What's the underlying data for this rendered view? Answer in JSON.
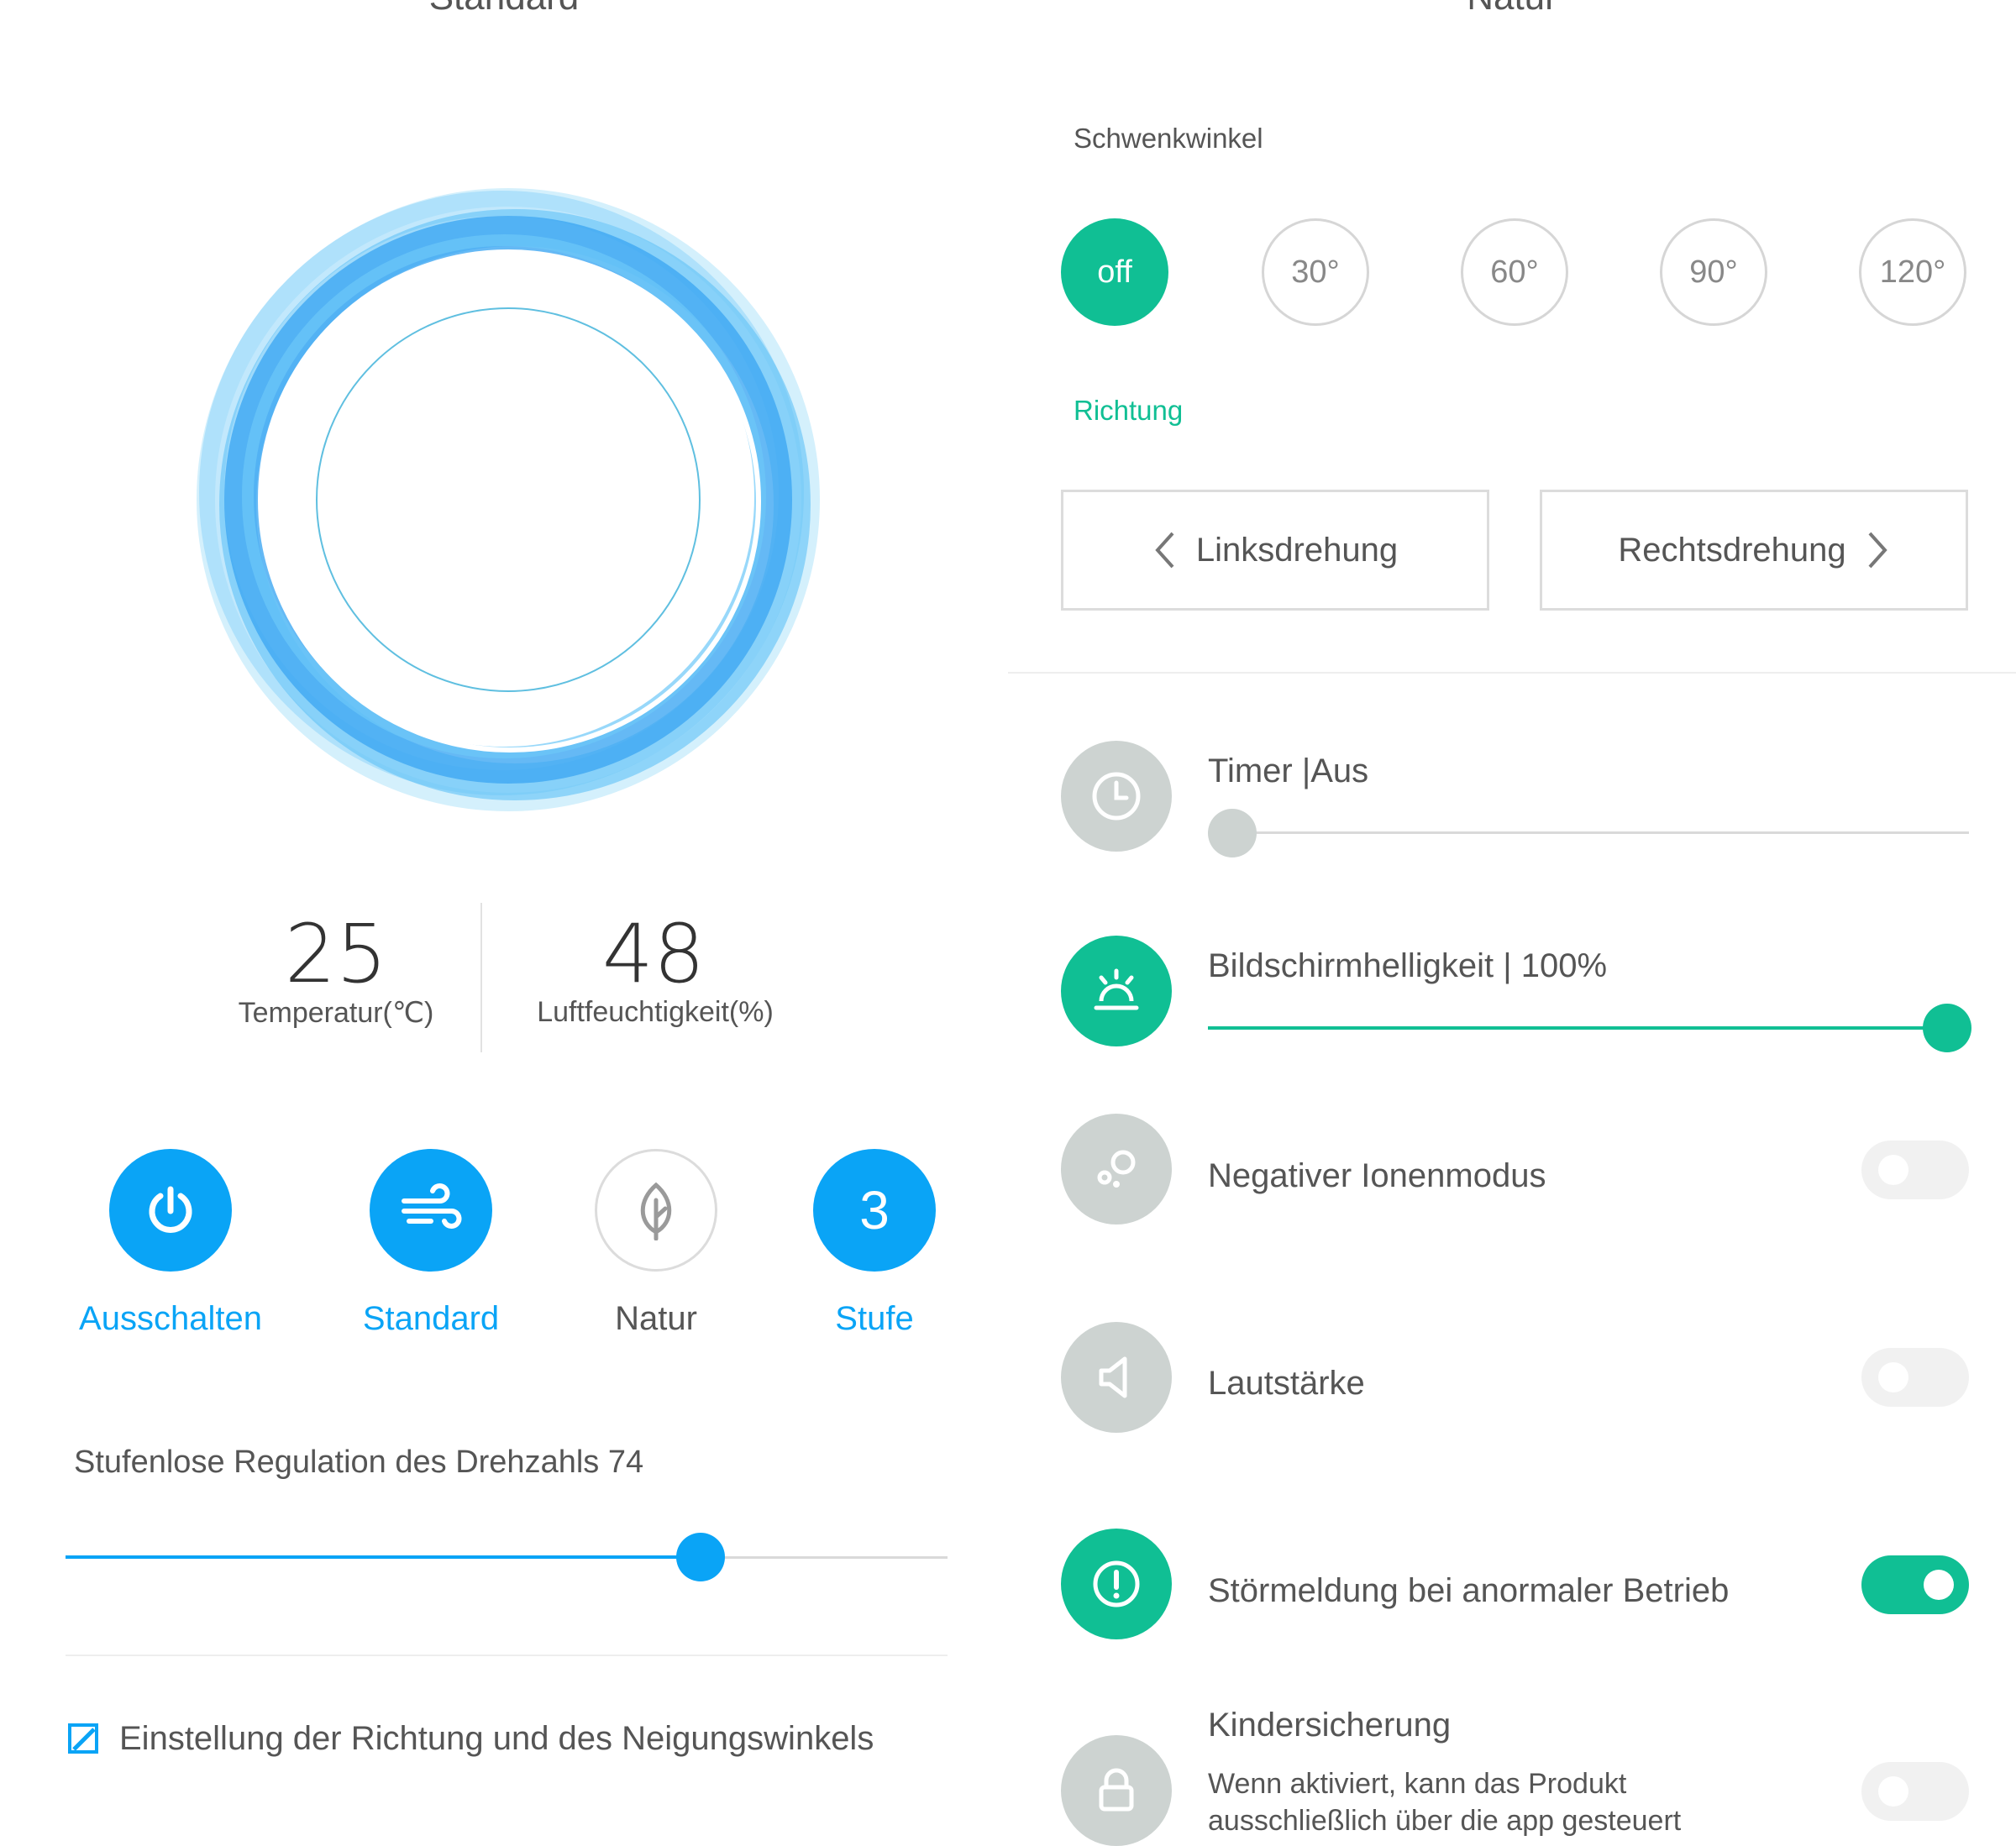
{
  "left_panel": {
    "top_title": "Standard",
    "temperature": {
      "value": "25",
      "label": "Temperatur(℃)"
    },
    "humidity": {
      "value": "48",
      "label": "Luftfeuchtigkeit(%)"
    },
    "modes": [
      {
        "label": "Ausschalten",
        "icon": "power-icon",
        "active": true
      },
      {
        "label": "Standard",
        "icon": "wind-icon",
        "active": true
      },
      {
        "label": "Natur",
        "icon": "leaf-icon",
        "active": false
      },
      {
        "label": "Stufe",
        "icon_text": "3",
        "active": true
      }
    ],
    "speed": {
      "label": "Stufenlose Regulation des Drehzahls 74",
      "level_fraction": 0.72
    },
    "direction_link": "Einstellung der Richtung und des Neigungswinkels",
    "accent": "#0aa4f6"
  },
  "right_panel": {
    "top_title": "Natur",
    "swing_label": "Schwenkwinkel",
    "angles": [
      {
        "label": "off",
        "active": true
      },
      {
        "label": "30°",
        "active": false
      },
      {
        "label": "60°",
        "active": false
      },
      {
        "label": "90°",
        "active": false
      },
      {
        "label": "120°",
        "active": false
      }
    ],
    "direction_label": "Richtung",
    "left_turn": "Linksdrehung",
    "right_turn": "Rechtsdrehung",
    "timer": {
      "label": "Timer |Aus",
      "level_fraction": 0
    },
    "brightness": {
      "label": "Bildschirmhelligkeit | 100%",
      "level_fraction": 1.0
    },
    "negative_ion": {
      "label": "Negativer Ionenmodus",
      "on": false
    },
    "volume": {
      "label": "Lautstärke",
      "on": false
    },
    "fault_alert": {
      "label": "Störmeldung bei anormaler Betrieb",
      "on": true
    },
    "child_lock": {
      "label": "Kindersicherung",
      "description": "Wenn aktiviert, kann das Produkt ausschließlich über die app gesteuert",
      "on": false
    },
    "accent": "#10bf94"
  }
}
